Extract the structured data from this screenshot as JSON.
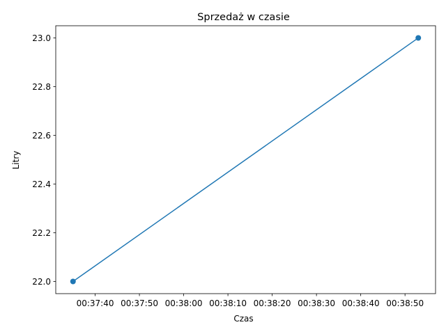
{
  "chart_data": {
    "type": "line",
    "title": "Sprzedaż w czasie",
    "xlabel": "Czas",
    "ylabel": "Litry",
    "x_unit": "seconds since 00:00:00",
    "x": [
      2255,
      2333
    ],
    "x_tick_values": [
      2260,
      2270,
      2280,
      2290,
      2300,
      2310,
      2320,
      2330
    ],
    "x_tick_labels": [
      "00:37:40",
      "00:37:50",
      "00:38:00",
      "00:38:10",
      "00:38:20",
      "00:38:30",
      "00:38:40",
      "00:38:50"
    ],
    "xlim": [
      2251.1,
      2336.9
    ],
    "series": [
      {
        "name": "Litry",
        "values": [
          22.0,
          23.0
        ],
        "marker": "circle"
      }
    ],
    "y_tick_values": [
      22.0,
      22.2,
      22.4,
      22.6,
      22.8,
      23.0
    ],
    "y_tick_labels": [
      "22.0",
      "22.2",
      "22.4",
      "22.6",
      "22.8",
      "23.0"
    ],
    "ylim": [
      21.95,
      23.05
    ],
    "grid": false,
    "line_color": "#1f77b4"
  }
}
